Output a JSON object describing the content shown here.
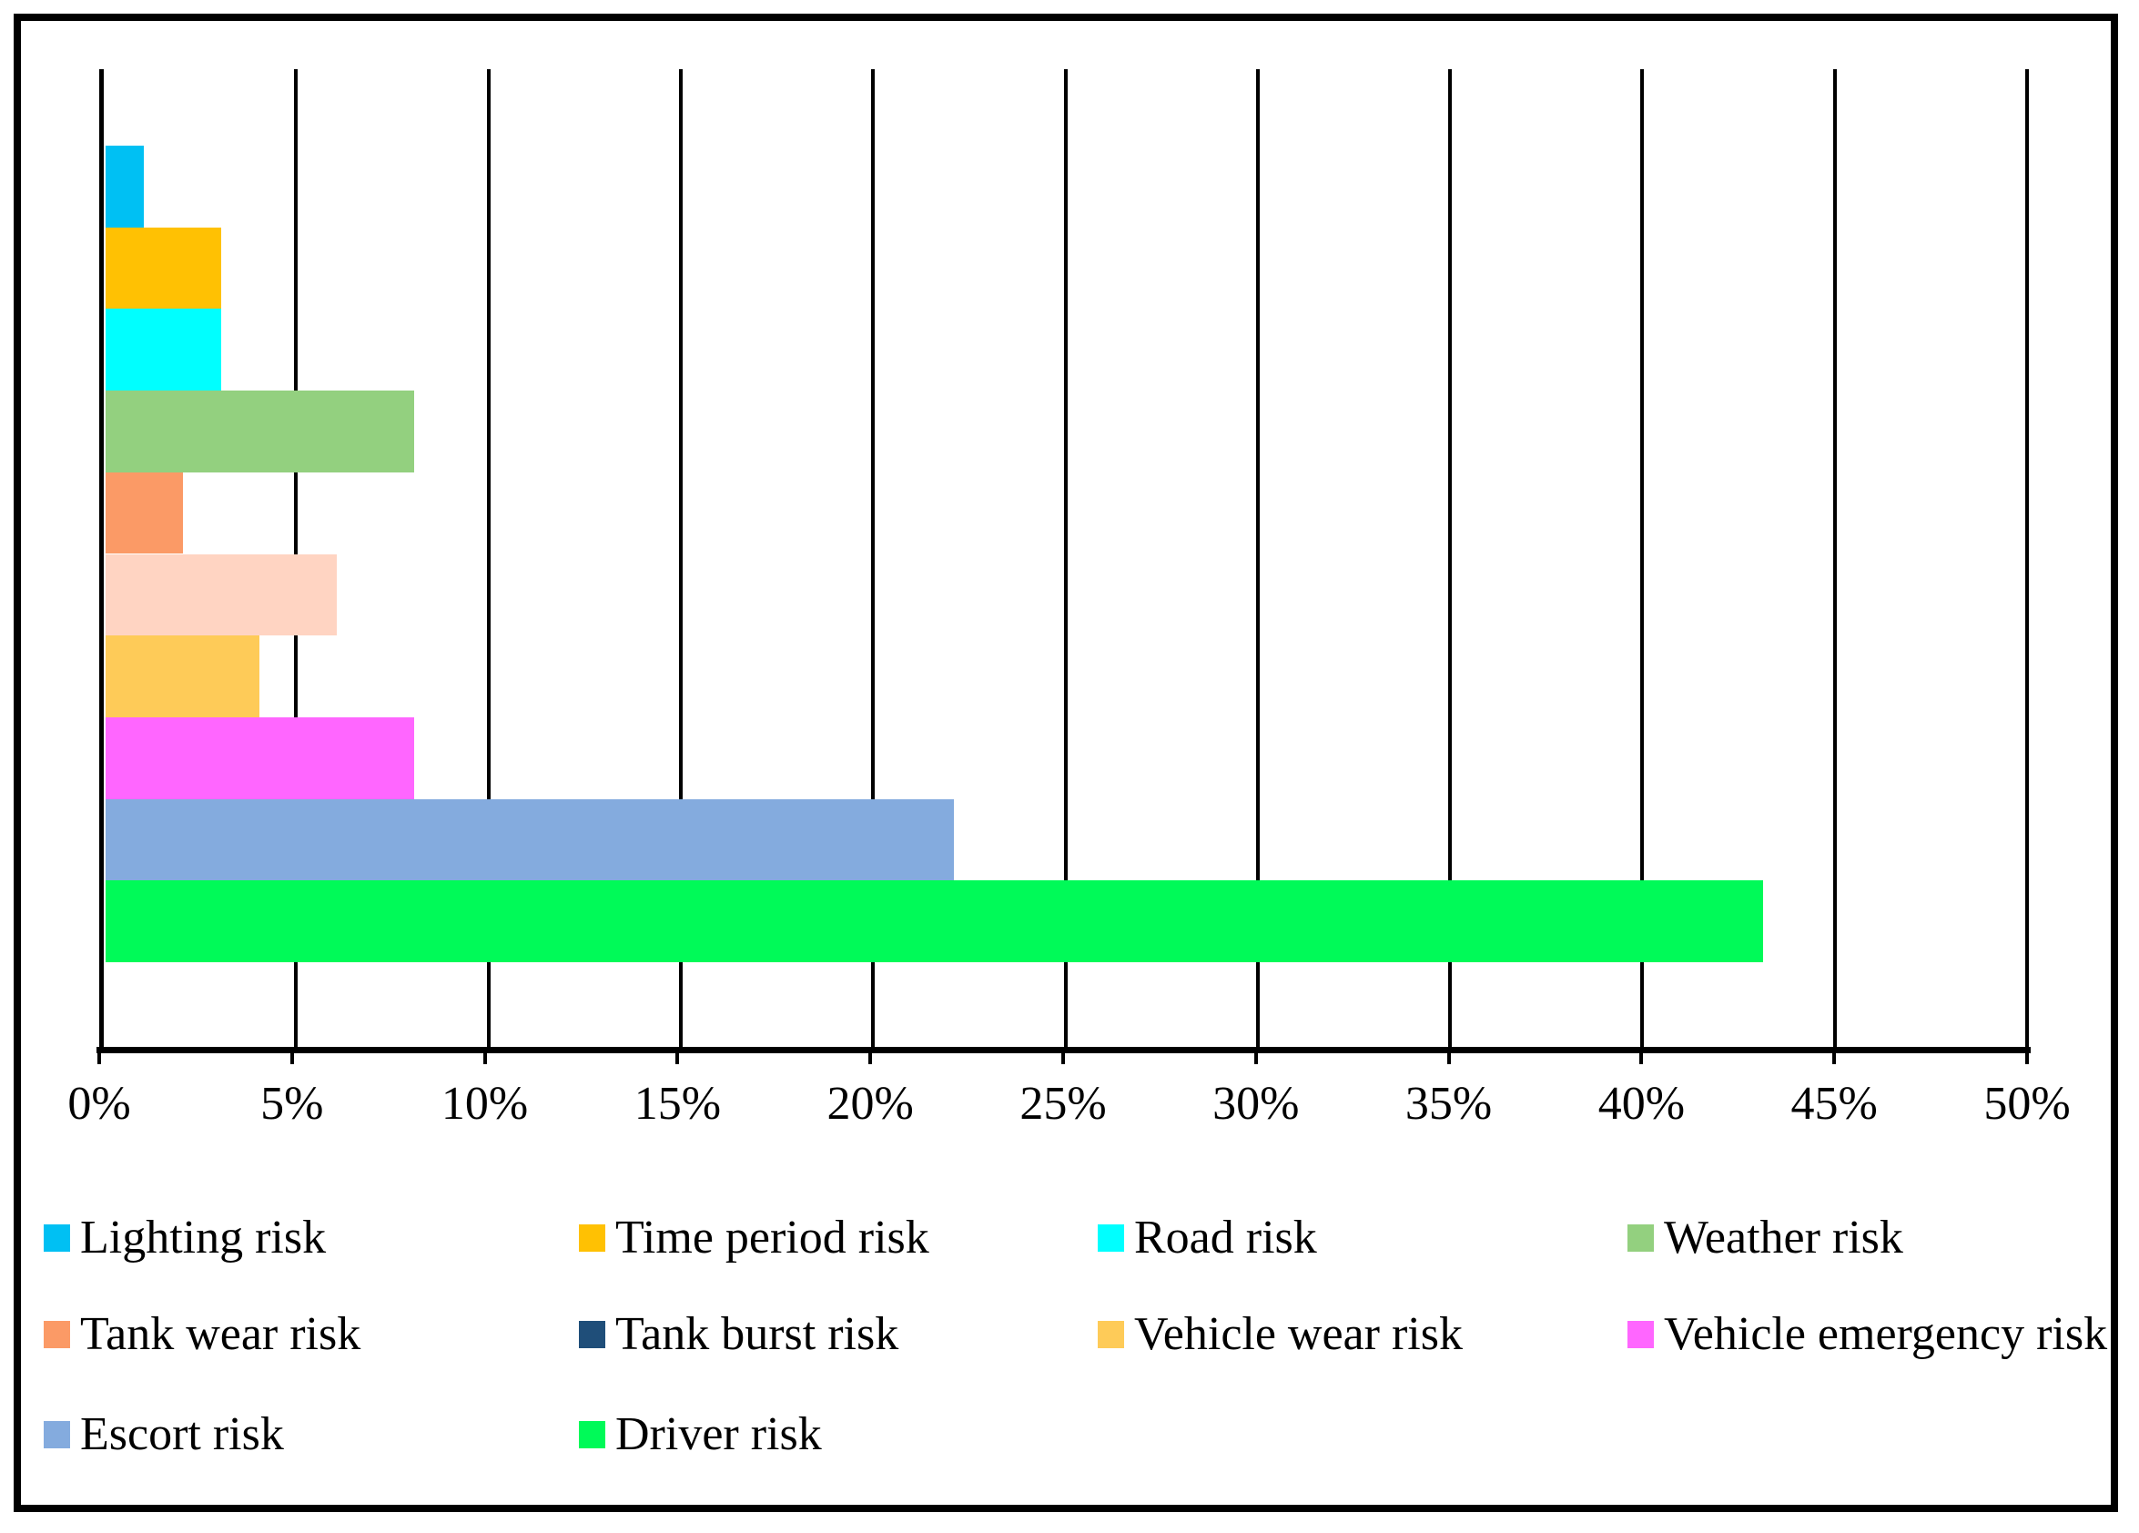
{
  "chart_data": {
    "type": "bar",
    "orientation": "horizontal",
    "title": "",
    "xlabel": "",
    "ylabel": "",
    "xlim": [
      0,
      50
    ],
    "x_tick_step_pct": 5,
    "x_tick_labels": [
      "0%",
      "5%",
      "10%",
      "15%",
      "20%",
      "25%",
      "30%",
      "35%",
      "40%",
      "45%",
      "50%"
    ],
    "grid": true,
    "legend_position": "bottom",
    "categories": [
      "Lighting risk",
      "Time period risk",
      "Road risk",
      "Weather risk",
      "Tank wear risk",
      "Tank burst risk",
      "Vehicle wear risk",
      "Vehicle emergency risk",
      "Escort risk",
      "Driver risk"
    ],
    "values": [
      1,
      3,
      3,
      8,
      2,
      6,
      4,
      8,
      22,
      43
    ],
    "series": [
      {
        "label": "Lighting risk",
        "value_pct": 1,
        "bar_color": "#00C0F3",
        "legend_color": "#00C0F3"
      },
      {
        "label": "Time period risk",
        "value_pct": 3,
        "bar_color": "#FFC103",
        "legend_color": "#FFC103"
      },
      {
        "label": "Road risk",
        "value_pct": 3,
        "bar_color": "#00FFFF",
        "legend_color": "#00FFFF"
      },
      {
        "label": "Weather risk",
        "value_pct": 8,
        "bar_color": "#93D07F",
        "legend_color": "#93D07F"
      },
      {
        "label": "Tank wear risk",
        "value_pct": 2,
        "bar_color": "#FB9A66",
        "legend_color": "#FB9A66"
      },
      {
        "label": "Tank burst risk",
        "value_pct": 6,
        "bar_color": "#FFD4C2",
        "legend_color": "#1F4E79"
      },
      {
        "label": "Vehicle wear risk",
        "value_pct": 4,
        "bar_color": "#FECB58",
        "legend_color": "#FECB58"
      },
      {
        "label": "Vehicle emergency risk",
        "value_pct": 8,
        "bar_color": "#FF66FF",
        "legend_color": "#FF66FF"
      },
      {
        "label": "Escort risk",
        "value_pct": 22,
        "bar_color": "#84ABDE",
        "legend_color": "#84ABDE"
      },
      {
        "label": "Driver risk",
        "value_pct": 43,
        "bar_color": "#00FA58",
        "legend_color": "#00FA58"
      }
    ]
  }
}
